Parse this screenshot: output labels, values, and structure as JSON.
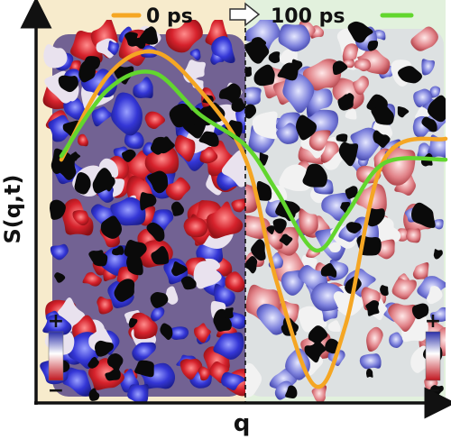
{
  "figure": {
    "legend": {
      "left_label": "0 ps",
      "right_label": "100 ps"
    },
    "axes": {
      "xlabel": "q",
      "ylabel": "S(q,t)"
    },
    "colorbar": {
      "plus": "+",
      "minus": "−"
    },
    "colors": {
      "left_panel_bg": "#f7ebcc",
      "right_panel_bg": "#e2f1dd",
      "curve_0ps": "#f5a623",
      "curve_100ps": "#62d62e",
      "positive": "#2b2ed1",
      "negative": "#d1202c",
      "axis": "#111111"
    }
  },
  "chart_data": {
    "type": "line",
    "xlabel": "q",
    "ylabel": "S(q,t)",
    "series": [
      {
        "name": "0 ps",
        "color": "#f5a623",
        "x": [
          0.0,
          0.12,
          0.24,
          0.36,
          0.48,
          0.56,
          0.66,
          0.74,
          0.84,
          1.0
        ],
        "y": [
          0.3,
          0.78,
          0.92,
          0.7,
          0.3,
          -0.4,
          -1.0,
          -0.65,
          0.3,
          0.42
        ]
      },
      {
        "name": "100 ps",
        "color": "#62d62e",
        "x": [
          0.0,
          0.12,
          0.24,
          0.36,
          0.48,
          0.56,
          0.66,
          0.74,
          0.84,
          1.0
        ],
        "y": [
          0.32,
          0.7,
          0.8,
          0.56,
          0.38,
          0.12,
          -0.22,
          -0.02,
          0.28,
          0.3
        ]
      }
    ]
  }
}
